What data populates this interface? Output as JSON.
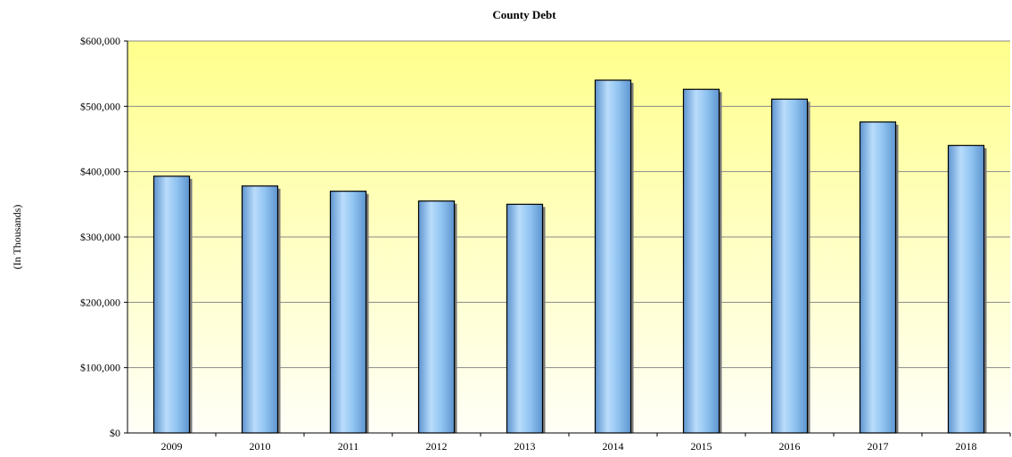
{
  "chart_data": {
    "type": "bar",
    "title": "County Debt",
    "xlabel": "",
    "ylabel": "(In Thousands)",
    "categories": [
      "2009",
      "2010",
      "2011",
      "2012",
      "2013",
      "2014",
      "2015",
      "2016",
      "2017",
      "2018"
    ],
    "values": [
      393000,
      378000,
      370000,
      355000,
      350000,
      540000,
      526000,
      511000,
      476000,
      440000
    ],
    "ylim": [
      0,
      600000
    ],
    "yticks": [
      0,
      100000,
      200000,
      300000,
      400000,
      500000,
      600000
    ],
    "ytick_labels": [
      "$0",
      "$100,000",
      "$200,000",
      "$300,000",
      "$400,000",
      "$500,000",
      "$600,000"
    ],
    "grid": true,
    "legend": "none",
    "colors": {
      "bar_light": "#b9dcfb",
      "bar_mid": "#8fc3f0",
      "bar_dark": "#5f95cf",
      "plot_top": "#ffff8c",
      "plot_bottom": "#fffff8",
      "gridline": "#8a8a8a"
    }
  }
}
